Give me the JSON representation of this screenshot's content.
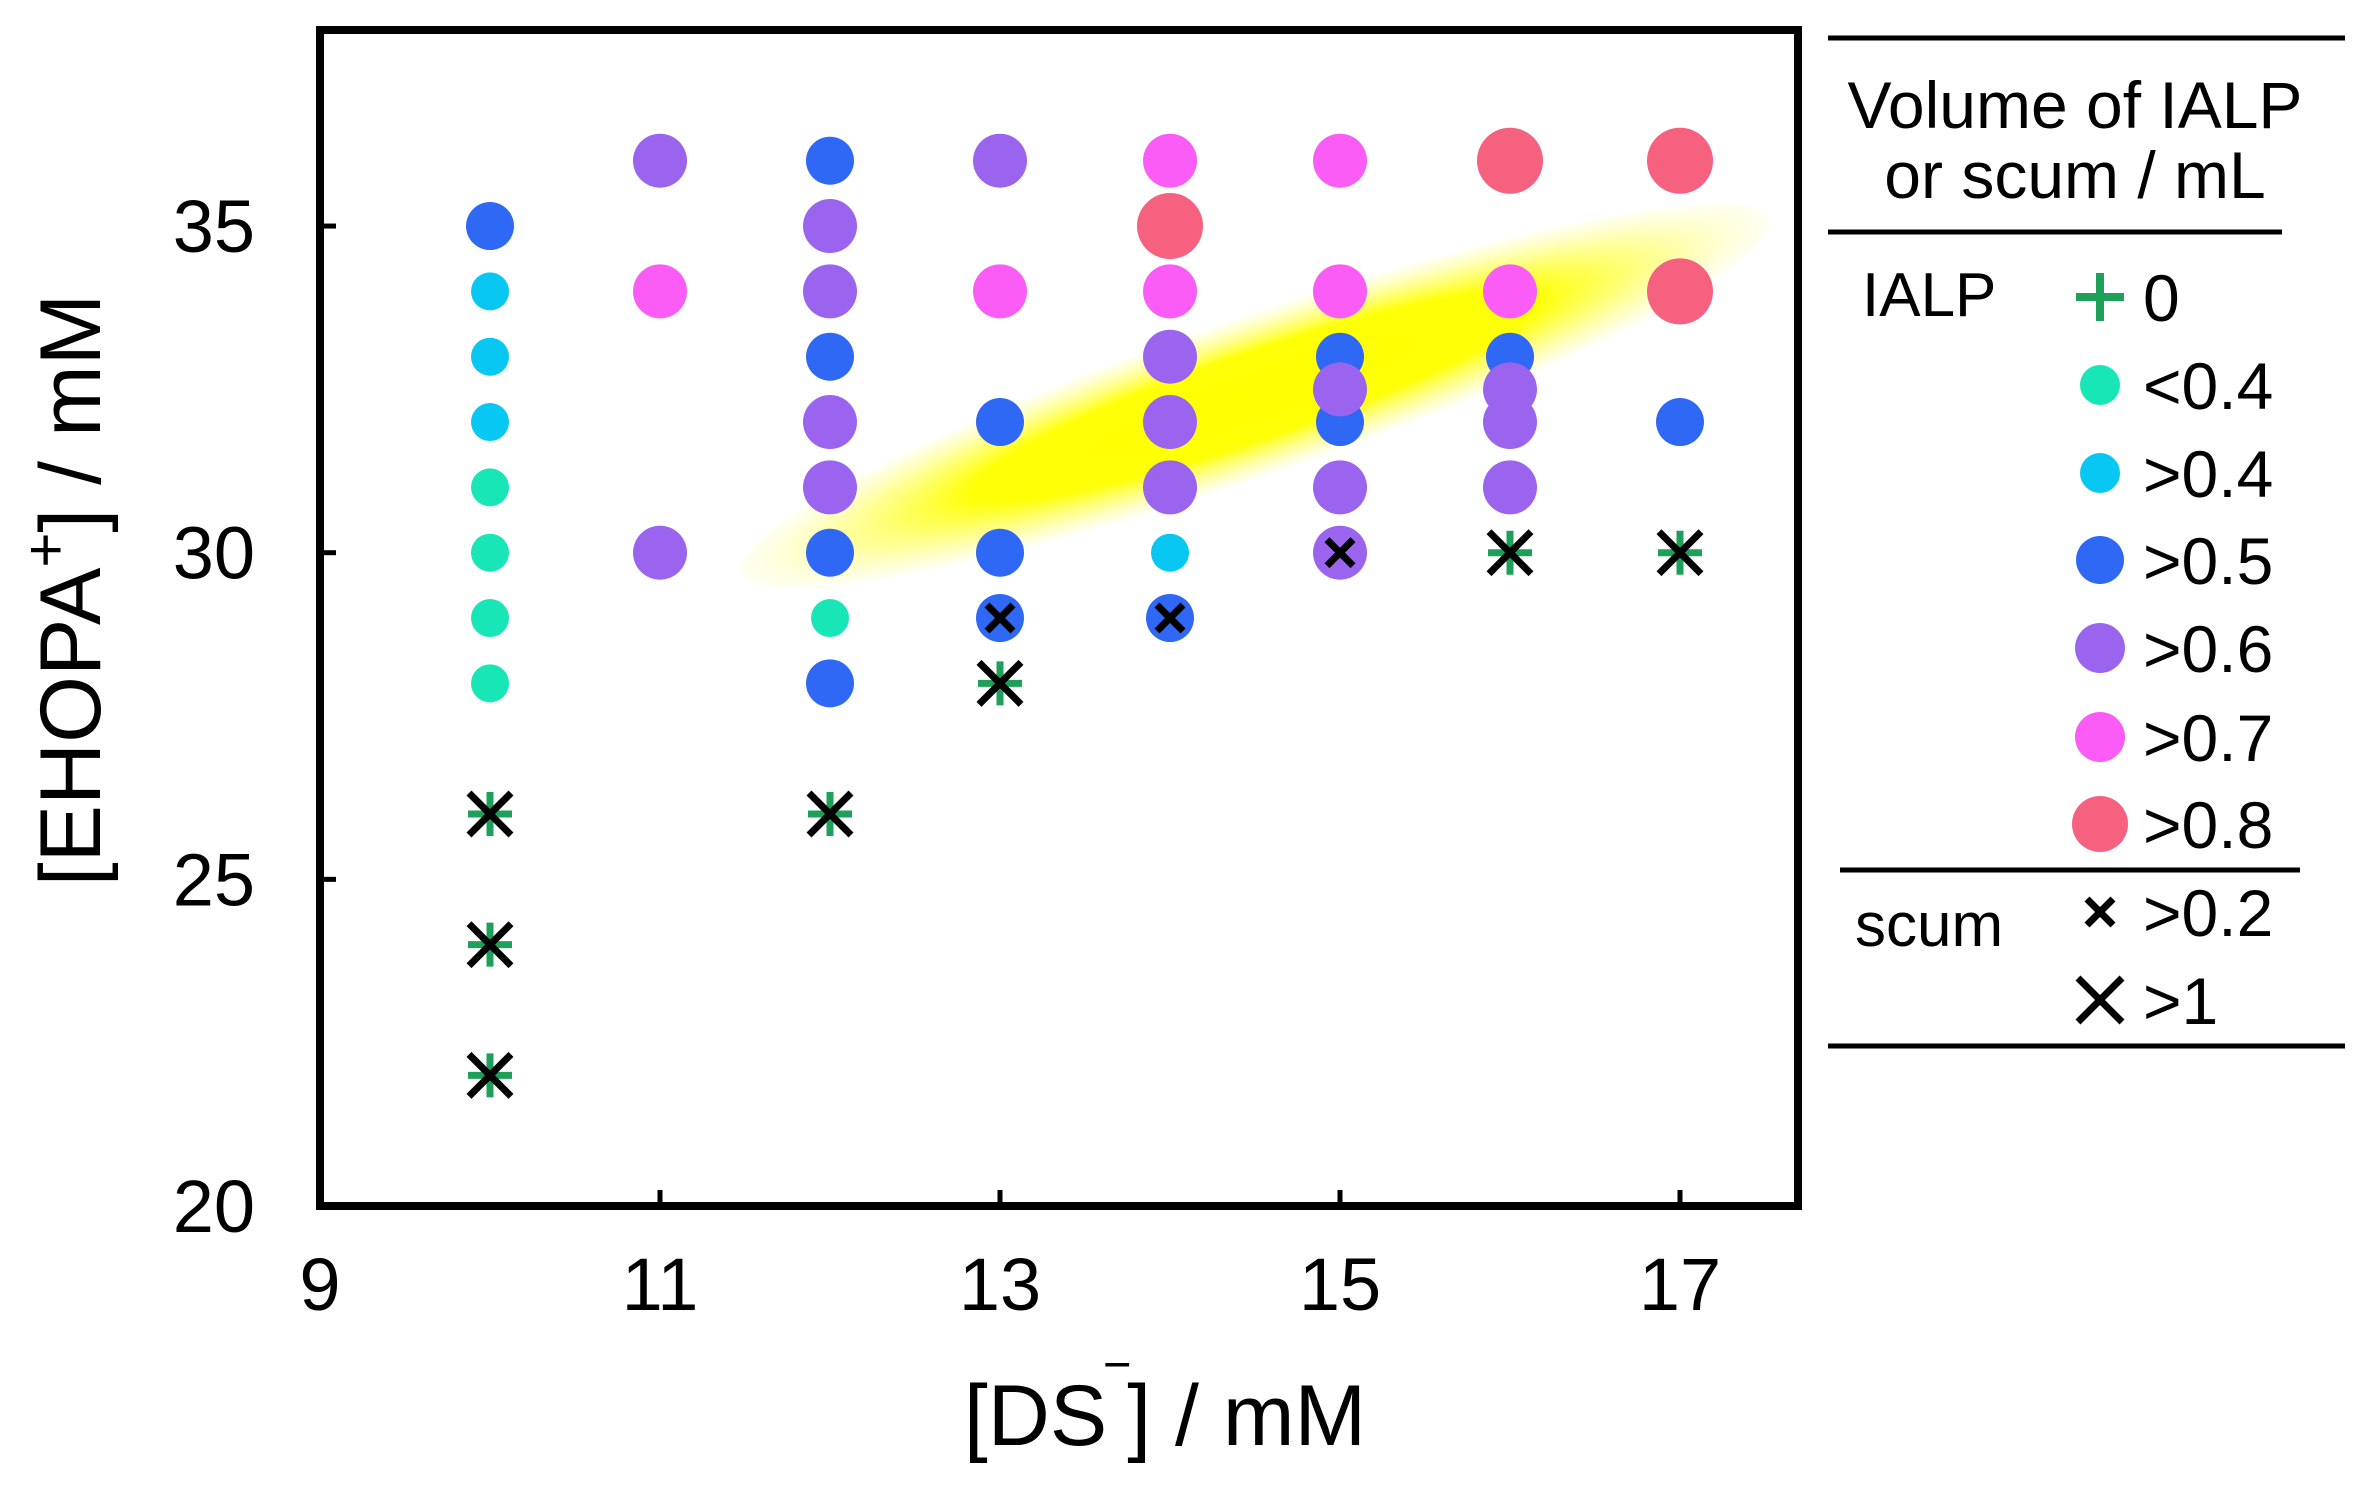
{
  "chart_data": {
    "type": "scatter",
    "title": "",
    "xlabel": "[DS‾] / mM",
    "xlabel_main": "[DS",
    "xlabel_sup": "‾",
    "xlabel_tail": "] / mM",
    "ylabel": "[EHOPA+] / mM",
    "ylabel_main": "[EHOPA",
    "ylabel_sup": "+",
    "ylabel_tail": "] / mM",
    "xlim": [
      9,
      17.7
    ],
    "ylim": [
      20,
      38
    ],
    "x_ticks": [
      9,
      11,
      13,
      15,
      17
    ],
    "y_ticks": [
      20,
      25,
      30,
      35
    ],
    "grid": false,
    "legend_placement": "right",
    "legend": {
      "title_line1": "Volume of IALP",
      "title_line2": "or scum / mL",
      "group_ialp": "IALP",
      "group_scum": "scum",
      "entries": [
        {
          "label": "0",
          "marker": "plus",
          "color": "#1fa05a"
        },
        {
          "label": "<0.4",
          "marker": "circle",
          "color": "#19e6b6"
        },
        {
          "label": ">0.4",
          "marker": "circle",
          "color": "#08c7f2"
        },
        {
          "label": ">0.5",
          "marker": "circle",
          "color": "#2f68f5"
        },
        {
          "label": ">0.6",
          "marker": "circle",
          "color": "#9a64ee"
        },
        {
          "label": ">0.7",
          "marker": "circle",
          "color": "#fa5cf5"
        },
        {
          "label": ">0.8",
          "marker": "circle",
          "color": "#f5617f"
        },
        {
          "label": ">0.2",
          "marker": "x-small",
          "color": "#000000"
        },
        {
          "label": ">1",
          "marker": "x-large",
          "color": "#000000"
        }
      ]
    },
    "highlight_region": {
      "shape": "ellipse",
      "color": "#ffff00",
      "center": [
        14.5,
        32.4
      ],
      "semi_axis_x": 3.2,
      "semi_axis_y": 1.2,
      "rotation_deg": -19
    },
    "series": [
      {
        "name": "<0.4",
        "marker": "circle",
        "color": "#19e6b6",
        "size": "small",
        "points": [
          [
            10,
            31
          ],
          [
            10,
            30
          ],
          [
            10,
            29
          ],
          [
            10,
            28
          ],
          [
            12,
            29
          ]
        ]
      },
      {
        "name": ">0.4",
        "marker": "circle",
        "color": "#08c7f2",
        "size": "small",
        "points": [
          [
            10,
            34
          ],
          [
            10,
            33
          ],
          [
            10,
            32
          ],
          [
            14,
            30
          ]
        ]
      },
      {
        "name": ">0.5",
        "marker": "circle",
        "color": "#2f68f5",
        "size": "medium",
        "points": [
          [
            10,
            35
          ],
          [
            12,
            36
          ],
          [
            12,
            33
          ],
          [
            12,
            30
          ],
          [
            12,
            28
          ],
          [
            13,
            32
          ],
          [
            13,
            30
          ],
          [
            13,
            29
          ],
          [
            14,
            29
          ],
          [
            15,
            33
          ],
          [
            15,
            32
          ],
          [
            16,
            33
          ],
          [
            17,
            32
          ]
        ]
      },
      {
        "name": ">0.6",
        "marker": "circle",
        "color": "#9a64ee",
        "size": "large",
        "points": [
          [
            11,
            36
          ],
          [
            11,
            30
          ],
          [
            12,
            35
          ],
          [
            12,
            34
          ],
          [
            12,
            32
          ],
          [
            12,
            31
          ],
          [
            13,
            36
          ],
          [
            14,
            33
          ],
          [
            14,
            32
          ],
          [
            14,
            31
          ],
          [
            15,
            32.5
          ],
          [
            15,
            31
          ],
          [
            15,
            30
          ],
          [
            16,
            32.5
          ],
          [
            16,
            32
          ],
          [
            16,
            31
          ]
        ]
      },
      {
        "name": ">0.7",
        "marker": "circle",
        "color": "#fa5cf5",
        "size": "large",
        "points": [
          [
            11,
            34
          ],
          [
            13,
            34
          ],
          [
            14,
            36
          ],
          [
            14,
            34
          ],
          [
            15,
            36
          ],
          [
            15,
            34
          ],
          [
            16,
            34
          ]
        ]
      },
      {
        "name": ">0.8",
        "marker": "circle",
        "color": "#f5617f",
        "size": "xlarge",
        "points": [
          [
            14,
            35
          ],
          [
            16,
            36
          ],
          [
            17,
            36
          ],
          [
            17,
            34
          ]
        ]
      },
      {
        "name": "0",
        "marker": "plus",
        "color": "#1fa05a",
        "points": [
          [
            10,
            26
          ],
          [
            10,
            24
          ],
          [
            10,
            22
          ],
          [
            12,
            26
          ],
          [
            13,
            28
          ],
          [
            16,
            30
          ],
          [
            17,
            30
          ]
        ]
      },
      {
        "name": ">0.2 scum",
        "marker": "x-small",
        "color": "#000000",
        "points": [
          [
            13,
            29
          ],
          [
            14,
            29
          ],
          [
            15,
            30
          ]
        ]
      },
      {
        "name": ">1 scum",
        "marker": "x-large",
        "color": "#000000",
        "points": [
          [
            10,
            26
          ],
          [
            10,
            24
          ],
          [
            10,
            22
          ],
          [
            12,
            26
          ],
          [
            13,
            28
          ],
          [
            16,
            30
          ],
          [
            17,
            30
          ]
        ]
      }
    ]
  }
}
